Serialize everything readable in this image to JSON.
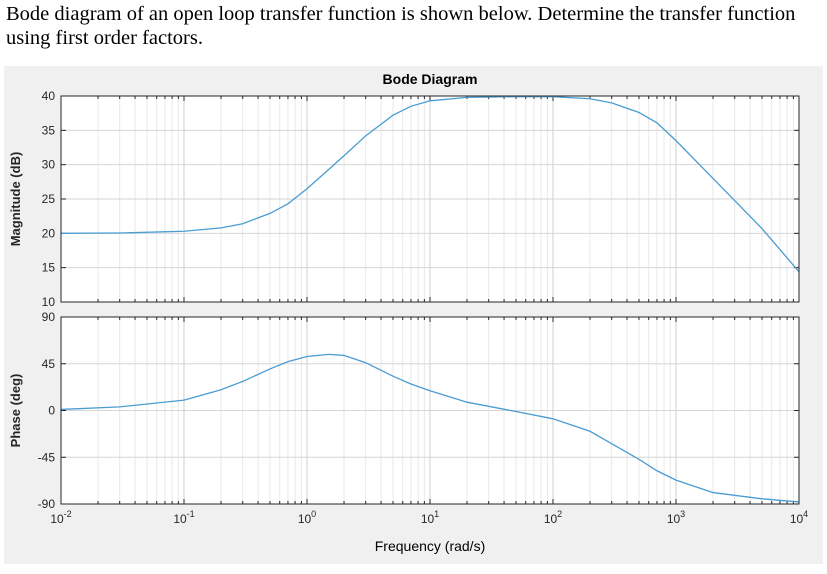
{
  "question": {
    "text": "Bode diagram of an open loop transfer function is shown below. Determine the transfer function using first order factors."
  },
  "chart_data": [
    {
      "type": "line",
      "title": "Bode Diagram",
      "xlabel": "",
      "ylabel": "Magnitude (dB)",
      "xscale": "log",
      "xlim": [
        0.01,
        10000
      ],
      "ylim": [
        10,
        40
      ],
      "yticks": [
        "10",
        "15",
        "20",
        "25",
        "30",
        "35",
        "40"
      ],
      "grid": true,
      "x": [
        0.01,
        0.03,
        0.1,
        0.2,
        0.3,
        0.5,
        0.7,
        1,
        1.5,
        2,
        3,
        5,
        7,
        10,
        20,
        50,
        100,
        200,
        300,
        500,
        700,
        1000,
        2000,
        5000,
        10000
      ],
      "y": [
        20.0,
        20.05,
        20.3,
        20.8,
        21.4,
        22.9,
        24.3,
        26.5,
        29.3,
        31.3,
        34.2,
        37.2,
        38.5,
        39.3,
        39.8,
        39.9,
        39.9,
        39.6,
        39.0,
        37.6,
        36.1,
        33.5,
        28.0,
        20.7,
        14.4
      ]
    },
    {
      "type": "line",
      "title": "",
      "xlabel": "Frequency (rad/s)",
      "ylabel": "Phase (deg)",
      "xscale": "log",
      "xlim": [
        0.01,
        10000
      ],
      "ylim": [
        -90,
        90
      ],
      "yticks": [
        "-90",
        "-45",
        "0",
        "45",
        "90"
      ],
      "xticks": [
        {
          "base": "10",
          "exp": "-2"
        },
        {
          "base": "10",
          "exp": "-1"
        },
        {
          "base": "10",
          "exp": "0"
        },
        {
          "base": "10",
          "exp": "1"
        },
        {
          "base": "10",
          "exp": "2"
        },
        {
          "base": "10",
          "exp": "3"
        },
        {
          "base": "10",
          "exp": "4"
        }
      ],
      "grid": true,
      "x": [
        0.01,
        0.03,
        0.1,
        0.2,
        0.3,
        0.5,
        0.7,
        1,
        1.5,
        2,
        3,
        5,
        7,
        10,
        20,
        50,
        100,
        200,
        300,
        500,
        700,
        1000,
        2000,
        5000,
        10000
      ],
      "y": [
        1.0,
        3.5,
        10.0,
        20.0,
        28.0,
        40.0,
        47.0,
        52.0,
        54.0,
        53.0,
        46.0,
        33.0,
        25.5,
        19.0,
        8.0,
        -1.0,
        -8.0,
        -20.0,
        -32.0,
        -47.0,
        -58.0,
        -67.0,
        -79.0,
        -85.0,
        -88.0
      ]
    }
  ],
  "colors": {
    "line": "#4a9cd2",
    "figure_bg": "#f0f0f0",
    "axes_bg": "#ffffff",
    "axes_edge": "#262626",
    "grid": "#dddddd",
    "tick_text": "#262626"
  }
}
